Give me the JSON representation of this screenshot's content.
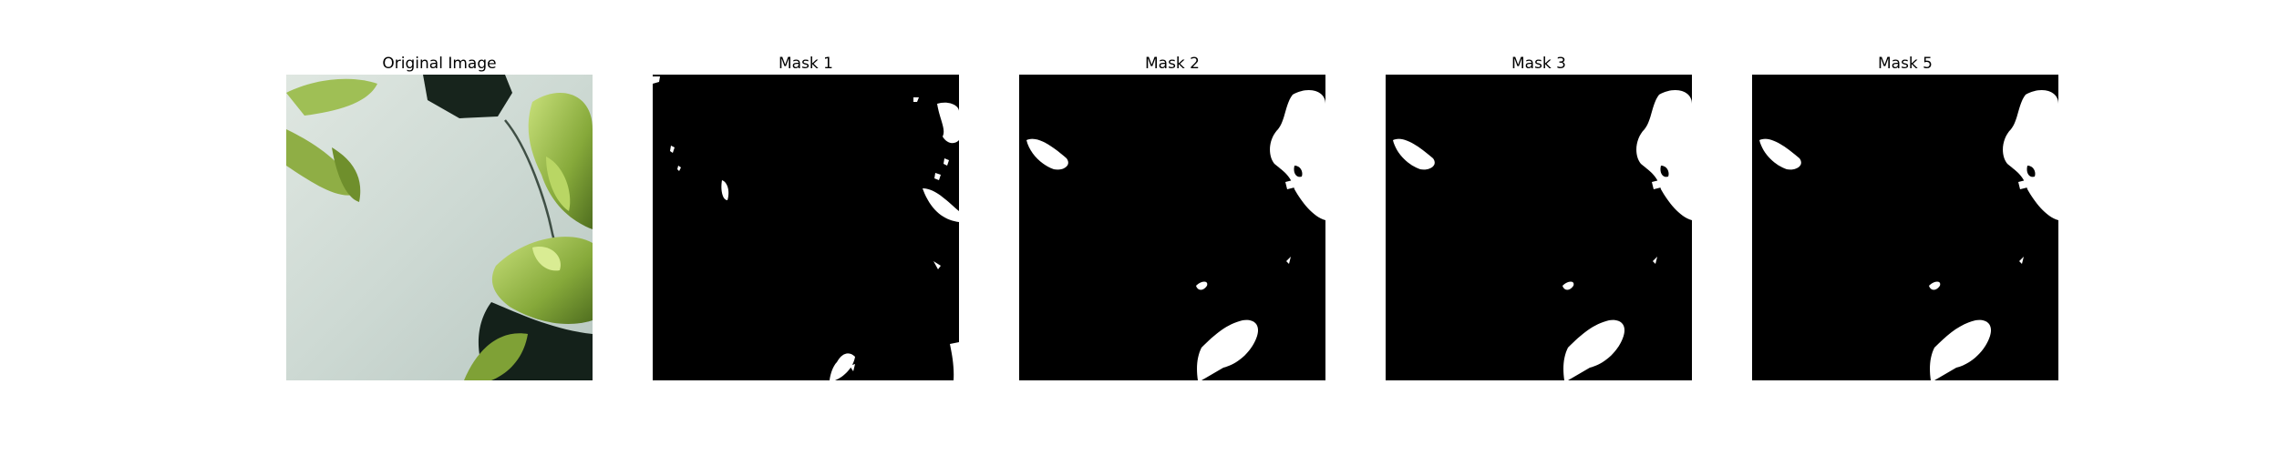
{
  "figure": {
    "panels": [
      {
        "title": "Original Image"
      },
      {
        "title": "Mask 1"
      },
      {
        "title": "Mask 2"
      },
      {
        "title": "Mask 3"
      },
      {
        "title": "Mask 5"
      }
    ]
  },
  "colors": {
    "background": "#ffffff",
    "mask_background": "#000000",
    "mask_foreground": "#ffffff",
    "photo_wall": "#cfdad3",
    "photo_leaf": "#8aab3c",
    "photo_shadow": "#0f1c15"
  }
}
